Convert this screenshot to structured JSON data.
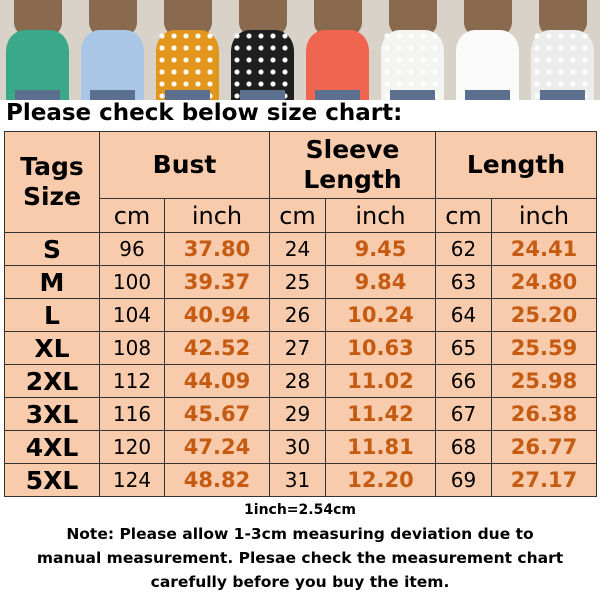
{
  "product_photos": {
    "colors": [
      {
        "shirt": "#3aa98a",
        "pattern": false
      },
      {
        "shirt": "#a9c6e6",
        "pattern": false
      },
      {
        "shirt": "#e3961c",
        "pattern": true
      },
      {
        "shirt": "#1e1e1e",
        "pattern": true
      },
      {
        "shirt": "#f0654f",
        "pattern": false
      },
      {
        "shirt": "#f4f4f2",
        "pattern": true
      },
      {
        "shirt": "#fafafa",
        "pattern": false
      },
      {
        "shirt": "#ececec",
        "pattern": true
      }
    ]
  },
  "title": "Please check below size chart:",
  "table": {
    "header": {
      "size": "Tags Size",
      "bust": "Bust",
      "sleeve": "Sleeve Length",
      "length": "Length",
      "cm": "cm",
      "inch": "inch"
    },
    "rows": [
      {
        "size": "S",
        "bust_cm": "96",
        "bust_in": "37.80",
        "sleeve_cm": "24",
        "sleeve_in": "9.45",
        "length_cm": "62",
        "length_in": "24.41"
      },
      {
        "size": "M",
        "bust_cm": "100",
        "bust_in": "39.37",
        "sleeve_cm": "25",
        "sleeve_in": "9.84",
        "length_cm": "63",
        "length_in": "24.80"
      },
      {
        "size": "L",
        "bust_cm": "104",
        "bust_in": "40.94",
        "sleeve_cm": "26",
        "sleeve_in": "10.24",
        "length_cm": "64",
        "length_in": "25.20"
      },
      {
        "size": "XL",
        "bust_cm": "108",
        "bust_in": "42.52",
        "sleeve_cm": "27",
        "sleeve_in": "10.63",
        "length_cm": "65",
        "length_in": "25.59"
      },
      {
        "size": "2XL",
        "bust_cm": "112",
        "bust_in": "44.09",
        "sleeve_cm": "28",
        "sleeve_in": "11.02",
        "length_cm": "66",
        "length_in": "25.98"
      },
      {
        "size": "3XL",
        "bust_cm": "116",
        "bust_in": "45.67",
        "sleeve_cm": "29",
        "sleeve_in": "11.42",
        "length_cm": "67",
        "length_in": "26.38"
      },
      {
        "size": "4XL",
        "bust_cm": "120",
        "bust_in": "47.24",
        "sleeve_cm": "30",
        "sleeve_in": "11.81",
        "length_cm": "68",
        "length_in": "26.77"
      },
      {
        "size": "5XL",
        "bust_cm": "124",
        "bust_in": "48.82",
        "sleeve_cm": "31",
        "sleeve_in": "12.20",
        "length_cm": "69",
        "length_in": "27.17"
      }
    ],
    "colors": {
      "background": "#f8cbad",
      "inch_text": "#c55a11"
    }
  },
  "conversion": "1inch=2.54cm",
  "note": [
    "Note: Please allow 1-3cm measuring deviation due to",
    "manual measurement. Plesae check the measurement chart",
    "carefully before you buy the item."
  ]
}
